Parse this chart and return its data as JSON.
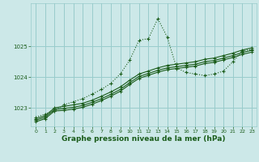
{
  "bg_color": "#cce8e8",
  "grid_color": "#99cccc",
  "line_color": "#1a5c1a",
  "xlabel": "Graphe pression niveau de la mer (hPa)",
  "xlabel_fontsize": 6.5,
  "xlim": [
    -0.5,
    23.5
  ],
  "ylim": [
    1022.4,
    1026.4
  ],
  "yticks": [
    1023,
    1024,
    1025
  ],
  "xticks": [
    0,
    1,
    2,
    3,
    4,
    5,
    6,
    7,
    8,
    9,
    10,
    11,
    12,
    13,
    14,
    15,
    16,
    17,
    18,
    19,
    20,
    21,
    22,
    23
  ],
  "series": [
    {
      "x": [
        0,
        1,
        2,
        3,
        4,
        5,
        6,
        7,
        8,
        9,
        10,
        11,
        12,
        13,
        14,
        15,
        16,
        17,
        18,
        19,
        20,
        21,
        22,
        23
      ],
      "y": [
        1022.7,
        1022.8,
        1022.9,
        1023.1,
        1023.2,
        1023.3,
        1023.45,
        1023.6,
        1023.8,
        1024.1,
        1024.55,
        1025.2,
        1025.25,
        1025.9,
        1025.3,
        1024.3,
        1024.15,
        1024.1,
        1024.05,
        1024.1,
        1024.2,
        1024.5,
        1024.85,
        1024.9
      ],
      "style": "dotted",
      "marker": "+"
    },
    {
      "x": [
        0,
        1,
        2,
        3,
        4,
        5,
        6,
        7,
        8,
        9,
        10,
        11,
        12,
        13,
        14,
        15,
        16,
        17,
        18,
        19,
        20,
        21,
        22,
        23
      ],
      "y": [
        1022.65,
        1022.75,
        1023.0,
        1023.05,
        1023.1,
        1023.15,
        1023.25,
        1023.38,
        1023.52,
        1023.68,
        1023.9,
        1024.1,
        1024.2,
        1024.3,
        1024.38,
        1024.42,
        1024.46,
        1024.5,
        1024.58,
        1024.62,
        1024.7,
        1024.78,
        1024.88,
        1024.95
      ],
      "style": "solid",
      "marker": "+"
    },
    {
      "x": [
        0,
        1,
        2,
        3,
        4,
        5,
        6,
        7,
        8,
        9,
        10,
        11,
        12,
        13,
        14,
        15,
        16,
        17,
        18,
        19,
        20,
        21,
        22,
        23
      ],
      "y": [
        1022.6,
        1022.7,
        1022.95,
        1022.98,
        1023.02,
        1023.08,
        1023.18,
        1023.3,
        1023.44,
        1023.6,
        1023.82,
        1024.02,
        1024.12,
        1024.22,
        1024.3,
        1024.34,
        1024.38,
        1024.42,
        1024.5,
        1024.54,
        1024.62,
        1024.7,
        1024.8,
        1024.87
      ],
      "style": "solid",
      "marker": "+"
    },
    {
      "x": [
        0,
        1,
        2,
        3,
        4,
        5,
        6,
        7,
        8,
        9,
        10,
        11,
        12,
        13,
        14,
        15,
        16,
        17,
        18,
        19,
        20,
        21,
        22,
        23
      ],
      "y": [
        1022.55,
        1022.65,
        1022.9,
        1022.92,
        1022.96,
        1023.02,
        1023.12,
        1023.24,
        1023.38,
        1023.54,
        1023.76,
        1023.96,
        1024.06,
        1024.16,
        1024.24,
        1024.28,
        1024.32,
        1024.36,
        1024.44,
        1024.48,
        1024.56,
        1024.64,
        1024.74,
        1024.81
      ],
      "style": "solid",
      "marker": "+"
    }
  ]
}
